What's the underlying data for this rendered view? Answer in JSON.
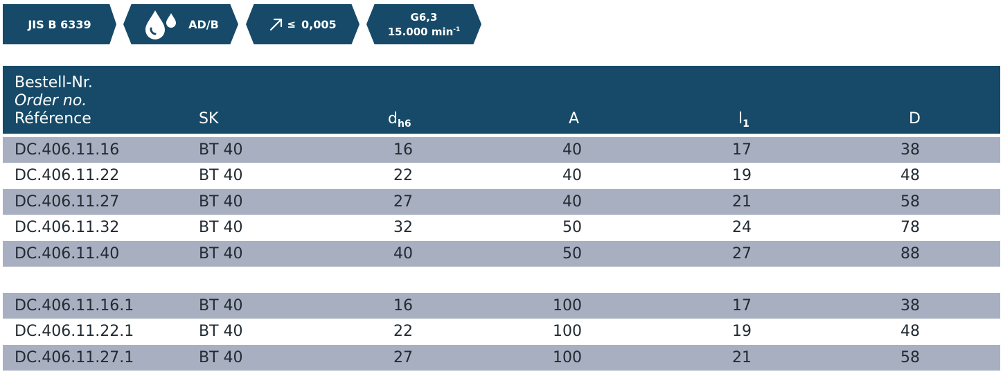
{
  "badges": {
    "standard": "JIS B 6339",
    "coolant": "AD/B",
    "coolant_icon": "coolant-drops-icon",
    "runout_prefix": "≤",
    "runout": "0,005",
    "runout_icon": "runout-arrow-icon",
    "balance_grade": "G6,3",
    "speed": "15.000 min",
    "speed_exp": "-1"
  },
  "table": {
    "headers": {
      "ref_de": "Bestell-Nr.",
      "ref_en": "Order no.",
      "ref_fr": "Référence",
      "sk": "SK",
      "d": "d",
      "d_sub": "h6",
      "a": "A",
      "l": "l",
      "l_sub": "1",
      "dd": "D"
    },
    "rows": [
      {
        "ref": "DC.406.11.16",
        "sk": "BT 40",
        "d": "16",
        "a": "40",
        "l": "17",
        "dd": "38"
      },
      {
        "ref": "DC.406.11.22",
        "sk": "BT 40",
        "d": "22",
        "a": "40",
        "l": "19",
        "dd": "48"
      },
      {
        "ref": "DC.406.11.27",
        "sk": "BT 40",
        "d": "27",
        "a": "40",
        "l": "21",
        "dd": "58"
      },
      {
        "ref": "DC.406.11.32",
        "sk": "BT 40",
        "d": "32",
        "a": "50",
        "l": "24",
        "dd": "78"
      },
      {
        "ref": "DC.406.11.40",
        "sk": "BT 40",
        "d": "40",
        "a": "50",
        "l": "27",
        "dd": "88"
      },
      {
        "ref": "DC.406.11.16.1",
        "sk": "BT 40",
        "d": "16",
        "a": "100",
        "l": "17",
        "dd": "38"
      },
      {
        "ref": "DC.406.11.22.1",
        "sk": "BT 40",
        "d": "22",
        "a": "100",
        "l": "19",
        "dd": "48"
      },
      {
        "ref": "DC.406.11.27.1",
        "sk": "BT 40",
        "d": "27",
        "a": "100",
        "l": "21",
        "dd": "58"
      }
    ]
  },
  "colors": {
    "header_bg": "#174a68",
    "row_shade": "#a8afc0"
  }
}
